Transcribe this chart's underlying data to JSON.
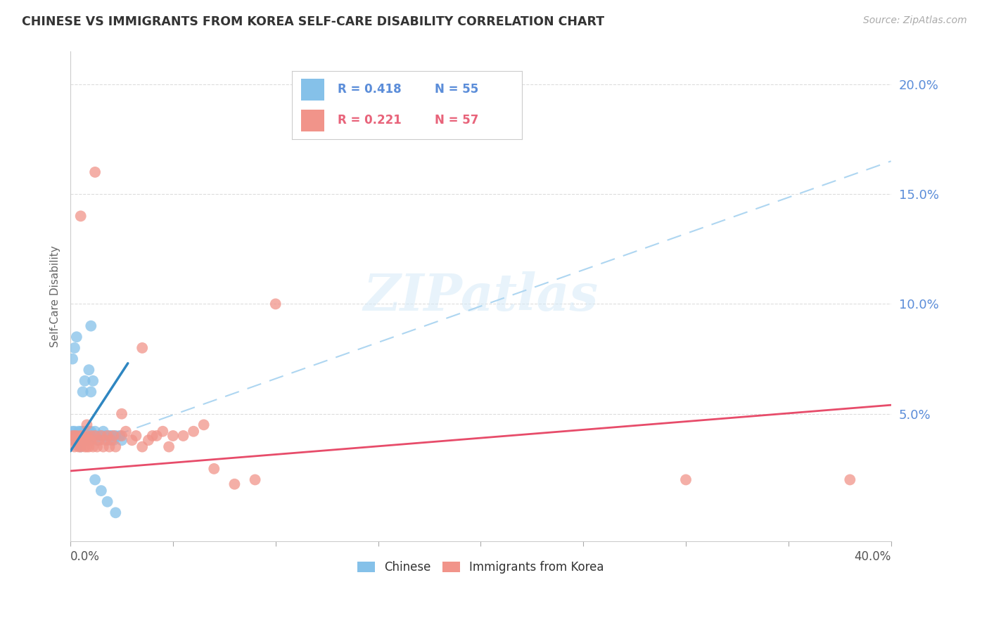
{
  "title": "CHINESE VS IMMIGRANTS FROM KOREA SELF-CARE DISABILITY CORRELATION CHART",
  "source": "Source: ZipAtlas.com",
  "ylabel": "Self-Care Disability",
  "y_ticks": [
    0.0,
    0.05,
    0.1,
    0.15,
    0.2
  ],
  "y_tick_labels": [
    "",
    "5.0%",
    "10.0%",
    "15.0%",
    "20.0%"
  ],
  "x_min": 0.0,
  "x_max": 0.4,
  "y_min": -0.008,
  "y_max": 0.215,
  "chinese_color": "#85C1E9",
  "korean_color": "#F1948A",
  "chinese_line_color": "#2E86C1",
  "korean_line_color": "#E74C6A",
  "dashed_line_color": "#AED6F1",
  "R_chinese": 0.418,
  "N_chinese": 55,
  "R_korean": 0.221,
  "N_korean": 57,
  "legend_label_chinese": "Chinese",
  "legend_label_korean": "Immigrants from Korea",
  "background_color": "#FFFFFF",
  "grid_color": "#DDDDDD",
  "chinese_scatter_x": [
    0.001,
    0.001,
    0.002,
    0.002,
    0.002,
    0.003,
    0.003,
    0.003,
    0.004,
    0.004,
    0.004,
    0.005,
    0.005,
    0.005,
    0.006,
    0.006,
    0.006,
    0.007,
    0.007,
    0.008,
    0.008,
    0.008,
    0.009,
    0.009,
    0.01,
    0.01,
    0.011,
    0.011,
    0.012,
    0.012,
    0.013,
    0.014,
    0.015,
    0.016,
    0.017,
    0.018,
    0.019,
    0.02,
    0.021,
    0.022,
    0.024,
    0.025,
    0.001,
    0.002,
    0.003,
    0.004,
    0.005,
    0.006,
    0.007,
    0.009,
    0.01,
    0.012,
    0.015,
    0.018,
    0.022
  ],
  "chinese_scatter_y": [
    0.04,
    0.042,
    0.038,
    0.04,
    0.042,
    0.04,
    0.038,
    0.04,
    0.04,
    0.042,
    0.038,
    0.04,
    0.042,
    0.038,
    0.04,
    0.042,
    0.038,
    0.04,
    0.042,
    0.04,
    0.042,
    0.038,
    0.04,
    0.042,
    0.042,
    0.06,
    0.04,
    0.065,
    0.04,
    0.042,
    0.038,
    0.04,
    0.04,
    0.042,
    0.04,
    0.038,
    0.04,
    0.04,
    0.038,
    0.04,
    0.04,
    0.038,
    0.075,
    0.08,
    0.085,
    0.04,
    0.035,
    0.06,
    0.065,
    0.07,
    0.09,
    0.02,
    0.015,
    0.01,
    0.005
  ],
  "korean_scatter_x": [
    0.001,
    0.001,
    0.002,
    0.002,
    0.003,
    0.003,
    0.004,
    0.004,
    0.005,
    0.005,
    0.006,
    0.006,
    0.007,
    0.007,
    0.008,
    0.008,
    0.009,
    0.009,
    0.01,
    0.01,
    0.011,
    0.012,
    0.013,
    0.014,
    0.015,
    0.016,
    0.017,
    0.018,
    0.019,
    0.02,
    0.021,
    0.022,
    0.025,
    0.027,
    0.03,
    0.032,
    0.035,
    0.038,
    0.04,
    0.042,
    0.045,
    0.048,
    0.05,
    0.055,
    0.06,
    0.065,
    0.07,
    0.08,
    0.09,
    0.1,
    0.3,
    0.38,
    0.005,
    0.012,
    0.025,
    0.035,
    0.008
  ],
  "korean_scatter_y": [
    0.038,
    0.04,
    0.035,
    0.04,
    0.038,
    0.04,
    0.035,
    0.038,
    0.04,
    0.035,
    0.038,
    0.04,
    0.035,
    0.038,
    0.04,
    0.035,
    0.038,
    0.035,
    0.038,
    0.04,
    0.035,
    0.04,
    0.035,
    0.038,
    0.04,
    0.035,
    0.038,
    0.04,
    0.035,
    0.038,
    0.04,
    0.035,
    0.04,
    0.042,
    0.038,
    0.04,
    0.035,
    0.038,
    0.04,
    0.04,
    0.042,
    0.035,
    0.04,
    0.04,
    0.042,
    0.045,
    0.025,
    0.018,
    0.02,
    0.1,
    0.02,
    0.02,
    0.14,
    0.16,
    0.05,
    0.08,
    0.045
  ],
  "chinese_line_x": [
    0.0,
    0.028
  ],
  "chinese_line_y_start": 0.033,
  "chinese_line_y_end": 0.073,
  "dashed_line_x": [
    0.0,
    0.4
  ],
  "dashed_line_y_start": 0.033,
  "dashed_line_y_end": 0.165,
  "korean_line_x": [
    0.0,
    0.4
  ],
  "korean_line_y_start": 0.024,
  "korean_line_y_end": 0.054
}
